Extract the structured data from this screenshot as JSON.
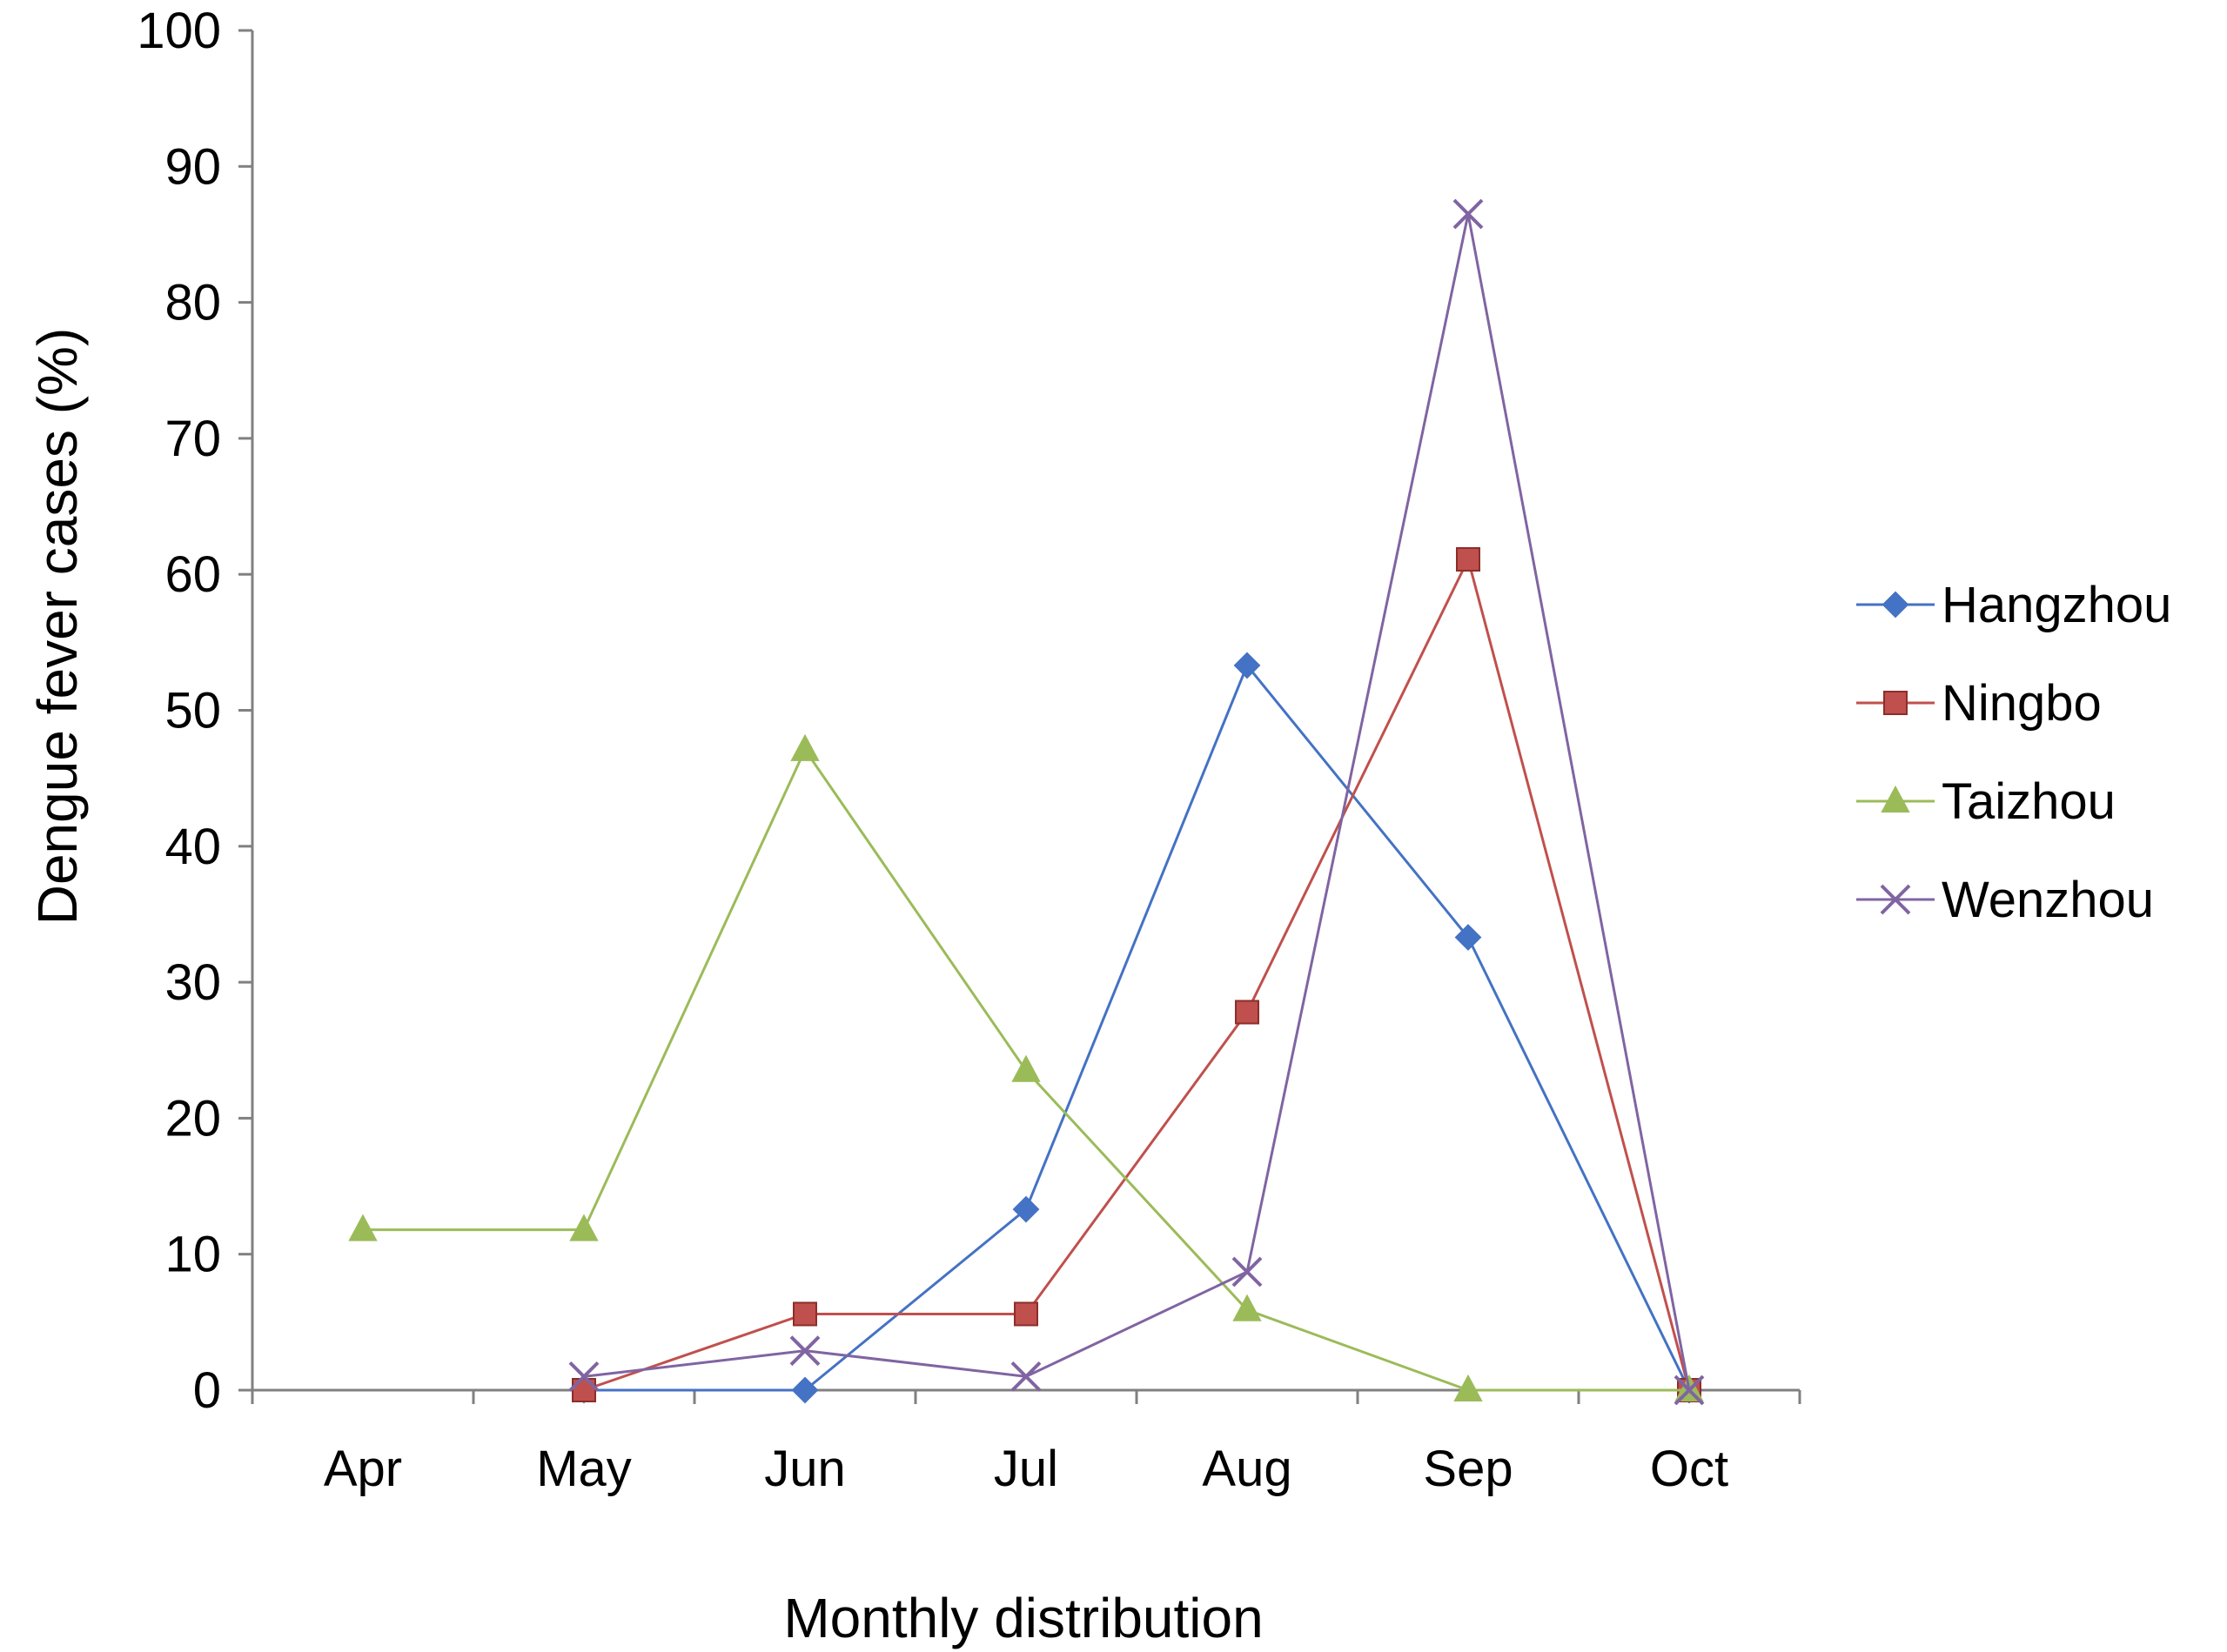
{
  "chart_data": {
    "type": "line",
    "title": "",
    "xlabel": "Monthly distribution",
    "ylabel": "Dengue fever cases (%)",
    "ylim": [
      0,
      100
    ],
    "yticks": [
      0,
      10,
      20,
      30,
      40,
      50,
      60,
      70,
      80,
      90,
      100
    ],
    "categories": [
      "Apr",
      "May",
      "Jun",
      "Jul",
      "Aug",
      "Sep",
      "Oct"
    ],
    "grid": false,
    "legend_position": "right",
    "series": [
      {
        "name": "Hangzhou",
        "color": "#4472C4",
        "marker": "diamond",
        "values": [
          null,
          0,
          0,
          13.3,
          53.3,
          33.3,
          0
        ]
      },
      {
        "name": "Ningbo",
        "color": "#C0504D",
        "marker": "square",
        "values": [
          null,
          0,
          5.6,
          5.6,
          27.8,
          61.1,
          0
        ]
      },
      {
        "name": "Taizhou",
        "color": "#9BBB59",
        "marker": "triangle",
        "values": [
          11.8,
          11.8,
          47.1,
          23.5,
          5.9,
          0,
          0
        ]
      },
      {
        "name": "Wenzhou",
        "color": "#8064A2",
        "marker": "x",
        "values": [
          null,
          1.0,
          2.9,
          1.0,
          8.7,
          86.5,
          0
        ]
      }
    ]
  }
}
